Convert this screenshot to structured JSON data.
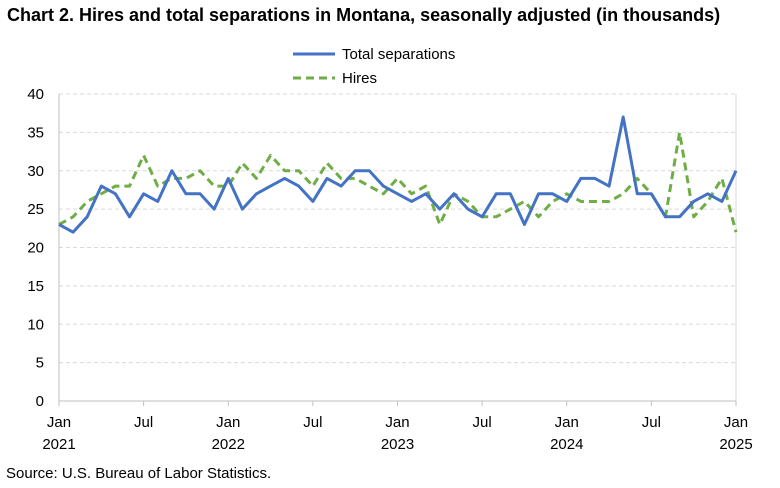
{
  "title": "Chart 2. Hires and total separations in Montana, seasonally adjusted (in thousands)",
  "source": "Source: U.S. Bureau of Labor Statistics.",
  "colors": {
    "total_separations": "#4472C4",
    "hires": "#70AD47",
    "grid": "#d9d9d9",
    "axis": "#bfbfbf"
  },
  "chart_data": {
    "type": "line",
    "title": "Chart 2. Hires and total separations in Montana, seasonally adjusted (in thousands)",
    "xlabel": "",
    "ylabel": "",
    "ylim": [
      0,
      40
    ],
    "yticks": [
      0,
      5,
      10,
      15,
      20,
      25,
      30,
      35,
      40
    ],
    "grid": true,
    "legend_position": "top-center",
    "x_ticks": [
      {
        "month": "Jan",
        "year": "2021"
      },
      {
        "month": "Jul",
        "year": ""
      },
      {
        "month": "Jan",
        "year": "2022"
      },
      {
        "month": "Jul",
        "year": ""
      },
      {
        "month": "Jan",
        "year": "2023"
      },
      {
        "month": "Jul",
        "year": ""
      },
      {
        "month": "Jan",
        "year": "2024"
      },
      {
        "month": "Jul",
        "year": ""
      },
      {
        "month": "Jan",
        "year": "2025"
      }
    ],
    "x": [
      "2021-01",
      "2021-02",
      "2021-03",
      "2021-04",
      "2021-05",
      "2021-06",
      "2021-07",
      "2021-08",
      "2021-09",
      "2021-10",
      "2021-11",
      "2021-12",
      "2022-01",
      "2022-02",
      "2022-03",
      "2022-04",
      "2022-05",
      "2022-06",
      "2022-07",
      "2022-08",
      "2022-09",
      "2022-10",
      "2022-11",
      "2022-12",
      "2023-01",
      "2023-02",
      "2023-03",
      "2023-04",
      "2023-05",
      "2023-06",
      "2023-07",
      "2023-08",
      "2023-09",
      "2023-10",
      "2023-11",
      "2023-12",
      "2024-01",
      "2024-02",
      "2024-03",
      "2024-04",
      "2024-05",
      "2024-06",
      "2024-07",
      "2024-08",
      "2024-09",
      "2024-10",
      "2024-11",
      "2024-12",
      "2025-01"
    ],
    "series": [
      {
        "name": "Total separations",
        "style": "solid",
        "values": [
          23,
          22,
          24,
          28,
          27,
          24,
          27,
          26,
          30,
          27,
          27,
          25,
          29,
          25,
          27,
          28,
          29,
          28,
          26,
          29,
          28,
          30,
          30,
          28,
          27,
          26,
          27,
          25,
          27,
          25,
          24,
          27,
          27,
          23,
          27,
          27,
          26,
          29,
          29,
          28,
          37,
          27,
          27,
          24,
          24,
          26,
          27,
          26,
          30
        ]
      },
      {
        "name": "Hires",
        "style": "dashed",
        "values": [
          23,
          24,
          26,
          27,
          28,
          28,
          32,
          28,
          29,
          29,
          30,
          28,
          28,
          31,
          29,
          32,
          30,
          30,
          28,
          31,
          29,
          29,
          28,
          27,
          29,
          27,
          28,
          23,
          27,
          26,
          24,
          24,
          25,
          26,
          24,
          26,
          27,
          26,
          26,
          26,
          27,
          29,
          27,
          24,
          35,
          24,
          26,
          29,
          22
        ]
      }
    ]
  }
}
